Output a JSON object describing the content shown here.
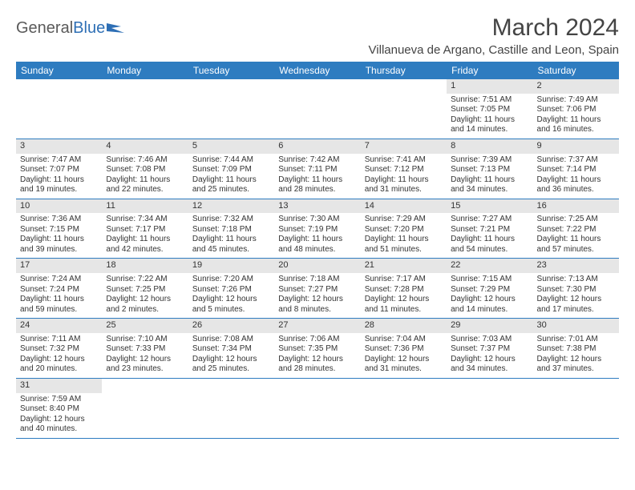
{
  "brand": {
    "part1": "General",
    "part2": "Blue"
  },
  "title": "March 2024",
  "location": "Villanueva de Argano, Castille and Leon, Spain",
  "colors": {
    "header_bg": "#2e7cc0",
    "header_text": "#ffffff",
    "daynum_bg": "#e6e6e6",
    "row_border": "#2e7cc0",
    "body_text": "#333333",
    "logo_gray": "#5a5a5a",
    "logo_blue": "#2e6fb5"
  },
  "weekdays": [
    "Sunday",
    "Monday",
    "Tuesday",
    "Wednesday",
    "Thursday",
    "Friday",
    "Saturday"
  ],
  "weeks": [
    [
      null,
      null,
      null,
      null,
      null,
      {
        "n": "1",
        "sr": "Sunrise: 7:51 AM",
        "ss": "Sunset: 7:05 PM",
        "d1": "Daylight: 11 hours",
        "d2": "and 14 minutes."
      },
      {
        "n": "2",
        "sr": "Sunrise: 7:49 AM",
        "ss": "Sunset: 7:06 PM",
        "d1": "Daylight: 11 hours",
        "d2": "and 16 minutes."
      }
    ],
    [
      {
        "n": "3",
        "sr": "Sunrise: 7:47 AM",
        "ss": "Sunset: 7:07 PM",
        "d1": "Daylight: 11 hours",
        "d2": "and 19 minutes."
      },
      {
        "n": "4",
        "sr": "Sunrise: 7:46 AM",
        "ss": "Sunset: 7:08 PM",
        "d1": "Daylight: 11 hours",
        "d2": "and 22 minutes."
      },
      {
        "n": "5",
        "sr": "Sunrise: 7:44 AM",
        "ss": "Sunset: 7:09 PM",
        "d1": "Daylight: 11 hours",
        "d2": "and 25 minutes."
      },
      {
        "n": "6",
        "sr": "Sunrise: 7:42 AM",
        "ss": "Sunset: 7:11 PM",
        "d1": "Daylight: 11 hours",
        "d2": "and 28 minutes."
      },
      {
        "n": "7",
        "sr": "Sunrise: 7:41 AM",
        "ss": "Sunset: 7:12 PM",
        "d1": "Daylight: 11 hours",
        "d2": "and 31 minutes."
      },
      {
        "n": "8",
        "sr": "Sunrise: 7:39 AM",
        "ss": "Sunset: 7:13 PM",
        "d1": "Daylight: 11 hours",
        "d2": "and 34 minutes."
      },
      {
        "n": "9",
        "sr": "Sunrise: 7:37 AM",
        "ss": "Sunset: 7:14 PM",
        "d1": "Daylight: 11 hours",
        "d2": "and 36 minutes."
      }
    ],
    [
      {
        "n": "10",
        "sr": "Sunrise: 7:36 AM",
        "ss": "Sunset: 7:15 PM",
        "d1": "Daylight: 11 hours",
        "d2": "and 39 minutes."
      },
      {
        "n": "11",
        "sr": "Sunrise: 7:34 AM",
        "ss": "Sunset: 7:17 PM",
        "d1": "Daylight: 11 hours",
        "d2": "and 42 minutes."
      },
      {
        "n": "12",
        "sr": "Sunrise: 7:32 AM",
        "ss": "Sunset: 7:18 PM",
        "d1": "Daylight: 11 hours",
        "d2": "and 45 minutes."
      },
      {
        "n": "13",
        "sr": "Sunrise: 7:30 AM",
        "ss": "Sunset: 7:19 PM",
        "d1": "Daylight: 11 hours",
        "d2": "and 48 minutes."
      },
      {
        "n": "14",
        "sr": "Sunrise: 7:29 AM",
        "ss": "Sunset: 7:20 PM",
        "d1": "Daylight: 11 hours",
        "d2": "and 51 minutes."
      },
      {
        "n": "15",
        "sr": "Sunrise: 7:27 AM",
        "ss": "Sunset: 7:21 PM",
        "d1": "Daylight: 11 hours",
        "d2": "and 54 minutes."
      },
      {
        "n": "16",
        "sr": "Sunrise: 7:25 AM",
        "ss": "Sunset: 7:22 PM",
        "d1": "Daylight: 11 hours",
        "d2": "and 57 minutes."
      }
    ],
    [
      {
        "n": "17",
        "sr": "Sunrise: 7:24 AM",
        "ss": "Sunset: 7:24 PM",
        "d1": "Daylight: 11 hours",
        "d2": "and 59 minutes."
      },
      {
        "n": "18",
        "sr": "Sunrise: 7:22 AM",
        "ss": "Sunset: 7:25 PM",
        "d1": "Daylight: 12 hours",
        "d2": "and 2 minutes."
      },
      {
        "n": "19",
        "sr": "Sunrise: 7:20 AM",
        "ss": "Sunset: 7:26 PM",
        "d1": "Daylight: 12 hours",
        "d2": "and 5 minutes."
      },
      {
        "n": "20",
        "sr": "Sunrise: 7:18 AM",
        "ss": "Sunset: 7:27 PM",
        "d1": "Daylight: 12 hours",
        "d2": "and 8 minutes."
      },
      {
        "n": "21",
        "sr": "Sunrise: 7:17 AM",
        "ss": "Sunset: 7:28 PM",
        "d1": "Daylight: 12 hours",
        "d2": "and 11 minutes."
      },
      {
        "n": "22",
        "sr": "Sunrise: 7:15 AM",
        "ss": "Sunset: 7:29 PM",
        "d1": "Daylight: 12 hours",
        "d2": "and 14 minutes."
      },
      {
        "n": "23",
        "sr": "Sunrise: 7:13 AM",
        "ss": "Sunset: 7:30 PM",
        "d1": "Daylight: 12 hours",
        "d2": "and 17 minutes."
      }
    ],
    [
      {
        "n": "24",
        "sr": "Sunrise: 7:11 AM",
        "ss": "Sunset: 7:32 PM",
        "d1": "Daylight: 12 hours",
        "d2": "and 20 minutes."
      },
      {
        "n": "25",
        "sr": "Sunrise: 7:10 AM",
        "ss": "Sunset: 7:33 PM",
        "d1": "Daylight: 12 hours",
        "d2": "and 23 minutes."
      },
      {
        "n": "26",
        "sr": "Sunrise: 7:08 AM",
        "ss": "Sunset: 7:34 PM",
        "d1": "Daylight: 12 hours",
        "d2": "and 25 minutes."
      },
      {
        "n": "27",
        "sr": "Sunrise: 7:06 AM",
        "ss": "Sunset: 7:35 PM",
        "d1": "Daylight: 12 hours",
        "d2": "and 28 minutes."
      },
      {
        "n": "28",
        "sr": "Sunrise: 7:04 AM",
        "ss": "Sunset: 7:36 PM",
        "d1": "Daylight: 12 hours",
        "d2": "and 31 minutes."
      },
      {
        "n": "29",
        "sr": "Sunrise: 7:03 AM",
        "ss": "Sunset: 7:37 PM",
        "d1": "Daylight: 12 hours",
        "d2": "and 34 minutes."
      },
      {
        "n": "30",
        "sr": "Sunrise: 7:01 AM",
        "ss": "Sunset: 7:38 PM",
        "d1": "Daylight: 12 hours",
        "d2": "and 37 minutes."
      }
    ],
    [
      {
        "n": "31",
        "sr": "Sunrise: 7:59 AM",
        "ss": "Sunset: 8:40 PM",
        "d1": "Daylight: 12 hours",
        "d2": "and 40 minutes."
      },
      null,
      null,
      null,
      null,
      null,
      null
    ]
  ]
}
